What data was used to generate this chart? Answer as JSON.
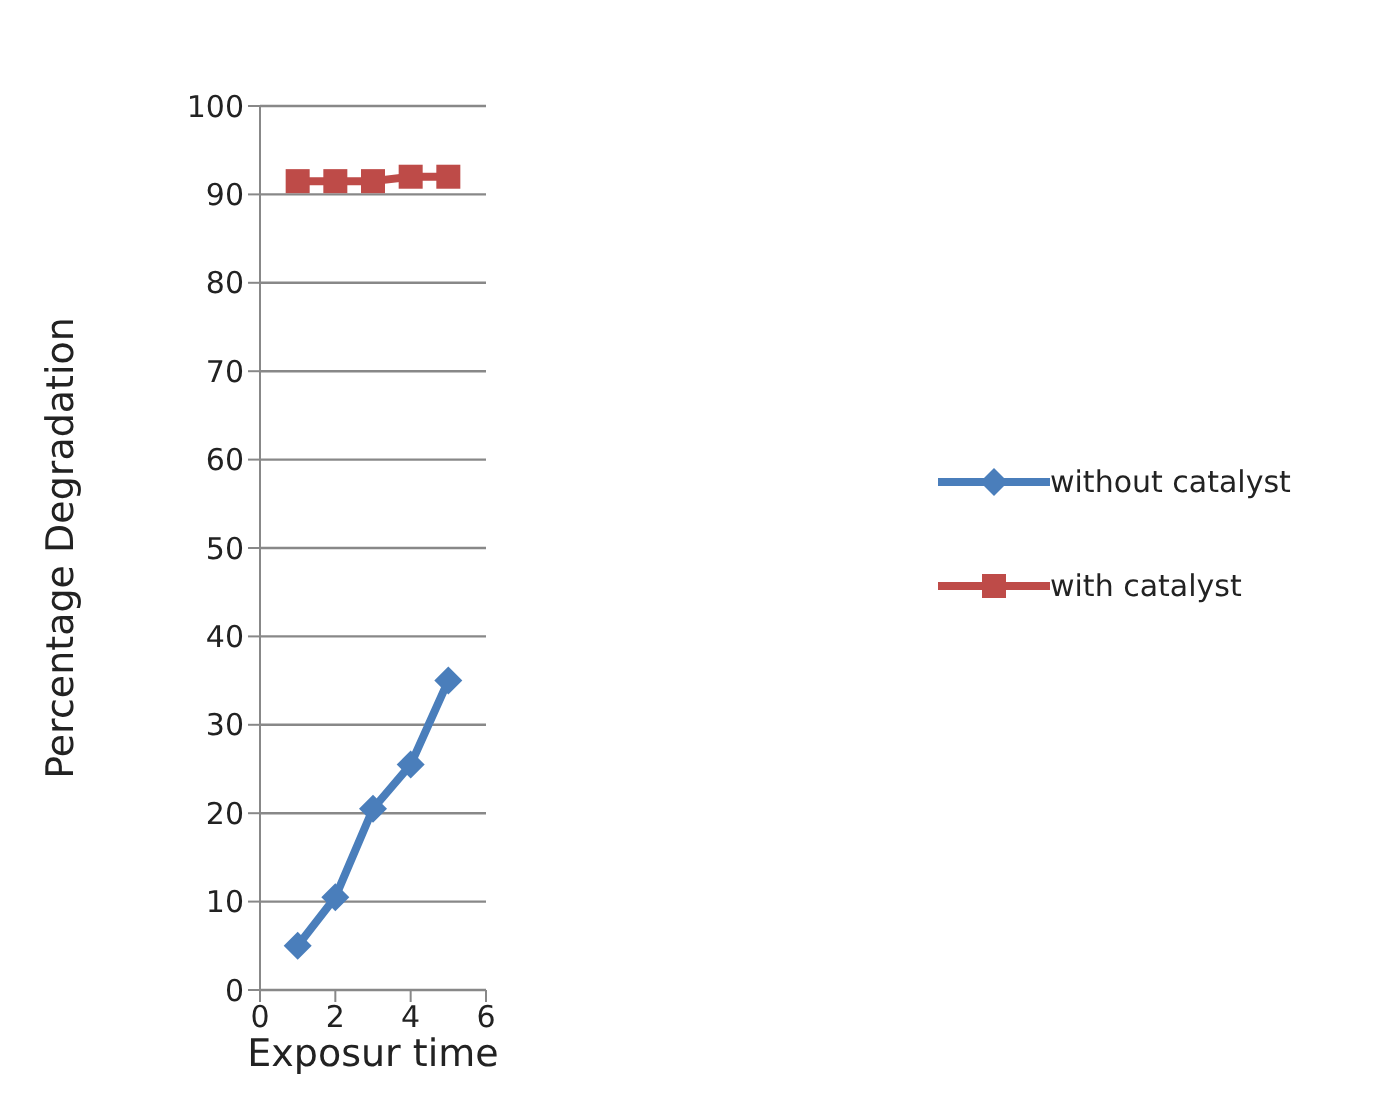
{
  "chart_data": {
    "type": "line",
    "xlabel": "Exposur time",
    "ylabel": "Percentage Degradation",
    "x": [
      1,
      2,
      3,
      4,
      5
    ],
    "series": [
      {
        "name": "without catalyst",
        "color": "#4a7ebb",
        "values": [
          5,
          10.5,
          20.5,
          25.5,
          35
        ],
        "marker": "diamond"
      },
      {
        "name": "with catalyst",
        "color": "#be4b48",
        "values": [
          91.5,
          91.5,
          91.5,
          92,
          92
        ],
        "marker": "square"
      }
    ],
    "xlim": [
      0,
      6
    ],
    "xticks": [
      0,
      2,
      4,
      6
    ],
    "ylim": [
      0,
      100
    ],
    "yticks": [
      0,
      10,
      20,
      30,
      40,
      50,
      60,
      70,
      80,
      90,
      100
    ],
    "grid": "y",
    "legend": "right"
  }
}
